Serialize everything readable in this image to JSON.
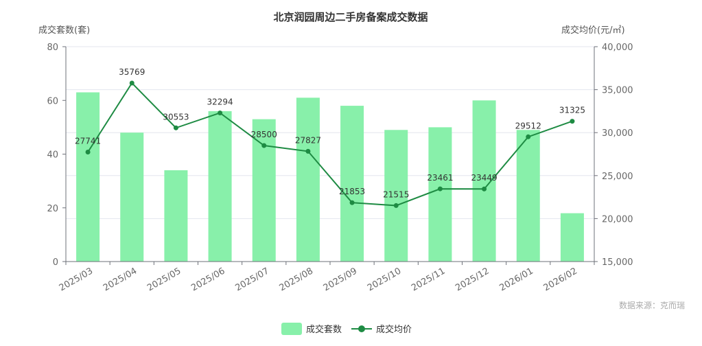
{
  "chart_data": {
    "type": "bar",
    "title": "北京润园周边二手房备案成交数据",
    "categories": [
      "2025/03",
      "2025/04",
      "2025/05",
      "2025/06",
      "2025/07",
      "2025/08",
      "2025/09",
      "2025/10",
      "2025/11",
      "2025/12",
      "2026/01",
      "2026/02"
    ],
    "series": [
      {
        "name": "成交套数",
        "type": "bar",
        "axis": "left",
        "color": "#88f0aa",
        "values": [
          63,
          48,
          34,
          56,
          53,
          61,
          58,
          49,
          50,
          60,
          49,
          18
        ]
      },
      {
        "name": "成交均价",
        "type": "line",
        "axis": "right",
        "color": "#1e8b43",
        "values": [
          27741,
          35769,
          30553,
          32294,
          28500,
          27827,
          21853,
          21515,
          23461,
          23449,
          29512,
          31325
        ]
      }
    ],
    "y_left": {
      "label": "成交套数(套)",
      "min": 0,
      "max": 80,
      "ticks": [
        "0",
        "20",
        "40",
        "60",
        "80"
      ]
    },
    "y_right": {
      "label": "成交均价(元/㎡)",
      "min": 15000,
      "max": 40000,
      "ticks": [
        "15,000",
        "20,000",
        "25,000",
        "30,000",
        "35,000",
        "40,000"
      ]
    },
    "legend_position": "bottom-center",
    "grid": true,
    "source": "数据来源：克而瑞"
  }
}
